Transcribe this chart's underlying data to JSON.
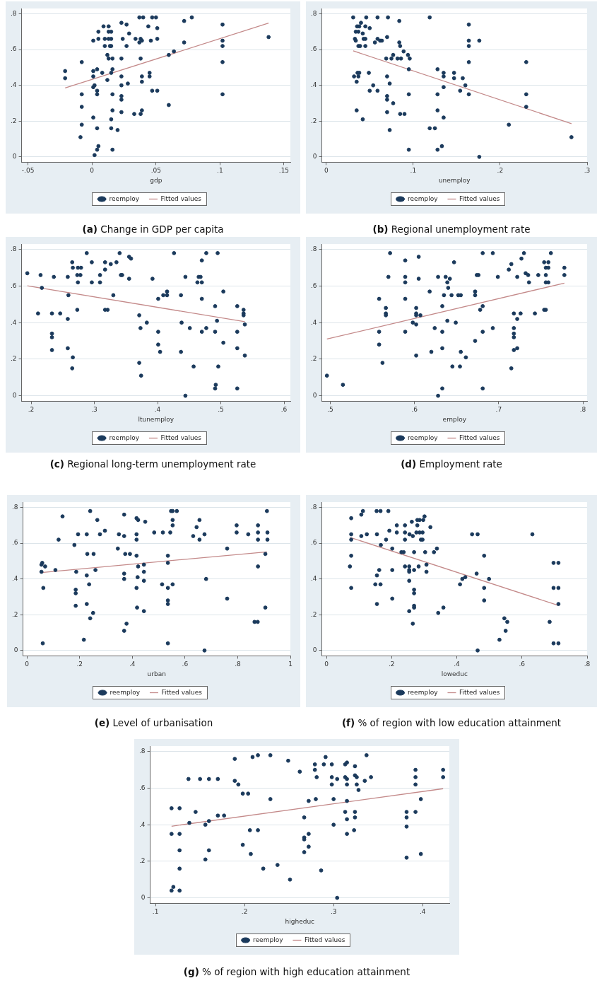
{
  "chart_data": [
    {
      "type": "scatter",
      "title": "(a) Change in GDP per capita",
      "xlabel": "gdp",
      "xlim": [
        -0.055,
        0.155
      ],
      "xticks": [
        {
          "value": -0.05,
          "label": "-.05"
        },
        {
          "value": 0,
          "label": "0"
        },
        {
          "value": 0.05,
          "label": ".05"
        },
        {
          "value": 0.1,
          "label": ".1"
        },
        {
          "value": 0.15,
          "label": ".15"
        }
      ],
      "ylim": [
        -0.03,
        0.83
      ],
      "yticks": [
        {
          "value": 0,
          "label": "0"
        },
        {
          "value": 0.2,
          "label": ".2"
        },
        {
          "value": 0.4,
          "label": ".4"
        },
        {
          "value": 0.6,
          "label": ".6"
        },
        {
          "value": 0.8,
          "label": ".8"
        }
      ],
      "grid": "y",
      "legend": "bottom",
      "marker": "circle",
      "series": [
        {
          "name": "reemploy",
          "color": "#1b3a5c",
          "x": [
            -0.021,
            -0.021,
            -0.008,
            -0.008,
            -0.008,
            -0.008,
            -0.009,
            0.001,
            0.001,
            0.001,
            0.001,
            0.002,
            0.004,
            0.004,
            0.004,
            0.001,
            0.004,
            0.005,
            0.004,
            0.002,
            0.005,
            0.005,
            0.009,
            0.008,
            0.01,
            0.01,
            0.012,
            0.012,
            0.013,
            0.013,
            0.015,
            0.013,
            0.015,
            0.014,
            0.015,
            0.013,
            0.016,
            0.016,
            0.015,
            0.016,
            0.016,
            0.015,
            0.015,
            0.016,
            0.02,
            0.023,
            0.024,
            0.023,
            0.023,
            0.023,
            0.023,
            0.023,
            0.023,
            0.027,
            0.027,
            0.028,
            0.029,
            0.033,
            0.034,
            0.037,
            0.037,
            0.038,
            0.039,
            0.04,
            0.038,
            0.039,
            0.039,
            0.039,
            0.038,
            0.044,
            0.045,
            0.045,
            0.046,
            0.047,
            0.047,
            0.05,
            0.051,
            0.051,
            0.051,
            0.06,
            0.06,
            0.064,
            0.072,
            0.072,
            0.078,
            0.102,
            0.102,
            0.102,
            0.102,
            0.102,
            0.138
          ],
          "values": [
            0.48,
            0.44,
            0.53,
            0.35,
            0.28,
            0.18,
            0.11,
            0.65,
            0.48,
            0.45,
            0.39,
            0.4,
            0.49,
            0.37,
            0.35,
            0.22,
            0.16,
            0.06,
            0.04,
            0.01,
            0.7,
            0.66,
            0.73,
            0.47,
            0.66,
            0.62,
            0.57,
            0.43,
            0.73,
            0.7,
            0.7,
            0.66,
            0.66,
            0.62,
            0.62,
            0.55,
            0.55,
            0.49,
            0.47,
            0.35,
            0.26,
            0.21,
            0.16,
            0.04,
            0.15,
            0.75,
            0.66,
            0.55,
            0.45,
            0.4,
            0.34,
            0.32,
            0.25,
            0.74,
            0.62,
            0.41,
            0.69,
            0.24,
            0.66,
            0.78,
            0.64,
            0.66,
            0.65,
            0.78,
            0.55,
            0.45,
            0.42,
            0.26,
            0.24,
            0.73,
            0.47,
            0.45,
            0.65,
            0.78,
            0.37,
            0.78,
            0.72,
            0.66,
            0.37,
            0.57,
            0.29,
            0.59,
            0.76,
            0.64,
            0.78,
            0.74,
            0.65,
            0.62,
            0.53,
            0.35,
            0.67
          ]
        },
        {
          "name": "Fitted values",
          "type": "line",
          "color": "#c48a8a",
          "marker": "none",
          "x": [
            -0.021,
            0.138
          ],
          "values": [
            0.385,
            0.748
          ]
        }
      ]
    },
    {
      "type": "scatter",
      "title": "(b) Regional unemployment rate",
      "xlabel": "unemploy",
      "xlim": [
        -0.005,
        0.3
      ],
      "xticks": [
        {
          "value": 0,
          "label": "0"
        },
        {
          "value": 0.1,
          "label": ".1"
        },
        {
          "value": 0.2,
          "label": ".2"
        },
        {
          "value": 0.3,
          "label": ".3"
        }
      ],
      "ylim": [
        -0.03,
        0.83
      ],
      "yticks": [
        {
          "value": 0,
          "label": "0"
        },
        {
          "value": 0.2,
          "label": ".2"
        },
        {
          "value": 0.4,
          "label": ".4"
        },
        {
          "value": 0.6,
          "label": ".6"
        },
        {
          "value": 0.8,
          "label": ".8"
        }
      ],
      "grid": "y",
      "legend": "bottom",
      "marker": "circle",
      "series": [
        {
          "name": "reemploy",
          "color": "#1b3a5c",
          "x": [
            0.031,
            0.032,
            0.033,
            0.034,
            0.034,
            0.0355,
            0.035,
            0.035,
            0.036,
            0.037,
            0.037,
            0.038,
            0.038,
            0.037,
            0.039,
            0.04,
            0.042,
            0.042,
            0.043,
            0.045,
            0.045,
            0.045,
            0.046,
            0.049,
            0.05,
            0.05,
            0.054,
            0.056,
            0.059,
            0.059,
            0.059,
            0.062,
            0.064,
            0.07,
            0.069,
            0.07,
            0.07,
            0.07,
            0.07,
            0.071,
            0.073,
            0.073,
            0.075,
            0.077,
            0.077,
            0.084,
            0.084,
            0.085,
            0.082,
            0.086,
            0.085,
            0.089,
            0.09,
            0.094,
            0.096,
            0.095,
            0.095,
            0.095,
            0.119,
            0.119,
            0.125,
            0.128,
            0.128,
            0.128,
            0.128,
            0.133,
            0.135,
            0.135,
            0.135,
            0.135,
            0.147,
            0.147,
            0.157,
            0.154,
            0.16,
            0.164,
            0.164,
            0.164,
            0.164,
            0.164,
            0.176,
            0.176,
            0.21,
            0.23,
            0.23,
            0.23,
            0.282
          ],
          "values": [
            0.78,
            0.45,
            0.66,
            0.7,
            0.65,
            0.73,
            0.42,
            0.26,
            0.47,
            0.62,
            0.7,
            0.73,
            0.47,
            0.45,
            0.62,
            0.75,
            0.69,
            0.21,
            0.66,
            0.66,
            0.73,
            0.62,
            0.78,
            0.47,
            0.37,
            0.72,
            0.4,
            0.64,
            0.78,
            0.66,
            0.37,
            0.65,
            0.65,
            0.67,
            0.55,
            0.45,
            0.34,
            0.32,
            0.25,
            0.78,
            0.41,
            0.15,
            0.55,
            0.57,
            0.3,
            0.76,
            0.64,
            0.62,
            0.55,
            0.55,
            0.24,
            0.59,
            0.24,
            0.57,
            0.55,
            0.49,
            0.35,
            0.04,
            0.78,
            0.16,
            0.16,
            0.49,
            0.35,
            0.26,
            0.04,
            0.06,
            0.47,
            0.45,
            0.39,
            0.22,
            0.47,
            0.44,
            0.44,
            0.37,
            0.4,
            0.74,
            0.65,
            0.62,
            0.53,
            0.35,
            0.65,
            0.0,
            0.18,
            0.53,
            0.35,
            0.28,
            0.11
          ]
        },
        {
          "name": "Fitted values",
          "type": "line",
          "color": "#c48a8a",
          "marker": "none",
          "x": [
            0.031,
            0.282
          ],
          "values": [
            0.593,
            0.186
          ]
        }
      ]
    },
    {
      "type": "scatter",
      "title": "(c) Regional long-term unemployment rate",
      "xlabel": "ltunemploy",
      "xlim": [
        0.185,
        0.61
      ],
      "xticks": [
        {
          "value": 0.2,
          "label": ".2"
        },
        {
          "value": 0.3,
          "label": ".3"
        },
        {
          "value": 0.4,
          "label": ".4"
        },
        {
          "value": 0.5,
          "label": ".5"
        },
        {
          "value": 0.6,
          "label": ".6"
        }
      ],
      "ylim": [
        -0.03,
        0.83
      ],
      "yticks": [
        {
          "value": 0,
          "label": "0"
        },
        {
          "value": 0.2,
          "label": ".2"
        },
        {
          "value": 0.4,
          "label": ".4"
        },
        {
          "value": 0.6,
          "label": ".6"
        },
        {
          "value": 0.8,
          "label": ".8"
        }
      ],
      "grid": "y",
      "legend": "bottom",
      "marker": "circle",
      "series": [
        {
          "name": "reemploy",
          "color": "#1b3a5c",
          "x": [
            0.194,
            0.211,
            0.215,
            0.217,
            0.233,
            0.233,
            0.233,
            0.233,
            0.236,
            0.246,
            0.258,
            0.259,
            0.258,
            0.258,
            0.265,
            0.266,
            0.266,
            0.265,
            0.273,
            0.274,
            0.273,
            0.274,
            0.278,
            0.279,
            0.288,
            0.296,
            0.296,
            0.309,
            0.309,
            0.317,
            0.317,
            0.317,
            0.321,
            0.326,
            0.33,
            0.335,
            0.34,
            0.342,
            0.344,
            0.355,
            0.358,
            0.355,
            0.371,
            0.373,
            0.371,
            0.374,
            0.383,
            0.392,
            0.401,
            0.401,
            0.401,
            0.404,
            0.409,
            0.415,
            0.415,
            0.426,
            0.437,
            0.437,
            0.438,
            0.444,
            0.444,
            0.451,
            0.457,
            0.463,
            0.465,
            0.468,
            0.47,
            0.47,
            0.47,
            0.47,
            0.477,
            0.477,
            0.491,
            0.491,
            0.491,
            0.492,
            0.494,
            0.495,
            0.496,
            0.504,
            0.504,
            0.526,
            0.526,
            0.526,
            0.526,
            0.536,
            0.536,
            0.536,
            0.538,
            0.538
          ],
          "values": [
            0.67,
            0.45,
            0.66,
            0.59,
            0.45,
            0.34,
            0.32,
            0.25,
            0.65,
            0.45,
            0.65,
            0.55,
            0.42,
            0.26,
            0.73,
            0.7,
            0.21,
            0.15,
            0.66,
            0.62,
            0.47,
            0.7,
            0.66,
            0.7,
            0.78,
            0.73,
            0.62,
            0.66,
            0.62,
            0.73,
            0.69,
            0.47,
            0.47,
            0.72,
            0.55,
            0.73,
            0.78,
            0.66,
            0.66,
            0.76,
            0.75,
            0.64,
            0.44,
            0.37,
            0.18,
            0.11,
            0.4,
            0.64,
            0.53,
            0.35,
            0.28,
            0.24,
            0.55,
            0.55,
            0.57,
            0.78,
            0.55,
            0.24,
            0.4,
            0.65,
            0.0,
            0.37,
            0.16,
            0.62,
            0.65,
            0.65,
            0.74,
            0.62,
            0.53,
            0.35,
            0.78,
            0.37,
            0.49,
            0.35,
            0.04,
            0.06,
            0.41,
            0.78,
            0.16,
            0.57,
            0.29,
            0.49,
            0.35,
            0.26,
            0.04,
            0.47,
            0.45,
            0.44,
            0.39,
            0.22
          ]
        },
        {
          "name": "Fitted values",
          "type": "line",
          "color": "#c48a8a",
          "marker": "none",
          "x": [
            0.194,
            0.538
          ],
          "values": [
            0.601,
            0.405
          ]
        }
      ]
    },
    {
      "type": "scatter",
      "title": "(d) Employment rate",
      "xlabel": "employ",
      "xlim": [
        0.49,
        0.805
      ],
      "xticks": [
        {
          "value": 0.5,
          "label": ".5"
        },
        {
          "value": 0.6,
          "label": ".6"
        },
        {
          "value": 0.7,
          "label": ".7"
        },
        {
          "value": 0.8,
          "label": ".8"
        }
      ],
      "ylim": [
        -0.03,
        0.83
      ],
      "yticks": [
        {
          "value": 0,
          "label": "0"
        },
        {
          "value": 0.2,
          "label": ".2"
        },
        {
          "value": 0.4,
          "label": ".4"
        },
        {
          "value": 0.6,
          "label": ".6"
        },
        {
          "value": 0.8,
          "label": ".8"
        }
      ],
      "grid": "y",
      "legend": "bottom",
      "marker": "circle",
      "series": [
        {
          "name": "reemploy",
          "color": "#1b3a5c",
          "x": [
            0.496,
            0.515,
            0.558,
            0.558,
            0.558,
            0.562,
            0.566,
            0.566,
            0.566,
            0.569,
            0.571,
            0.589,
            0.589,
            0.589,
            0.589,
            0.589,
            0.598,
            0.602,
            0.602,
            0.602,
            0.602,
            0.602,
            0.605,
            0.605,
            0.607,
            0.618,
            0.62,
            0.624,
            0.628,
            0.628,
            0.633,
            0.633,
            0.633,
            0.633,
            0.635,
            0.637,
            0.639,
            0.639,
            0.64,
            0.642,
            0.644,
            0.645,
            0.647,
            0.649,
            0.652,
            0.655,
            0.655,
            0.654,
            0.661,
            0.672,
            0.672,
            0.672,
            0.674,
            0.676,
            0.678,
            0.681,
            0.681,
            0.681,
            0.681,
            0.693,
            0.693,
            0.699,
            0.712,
            0.715,
            0.715,
            0.718,
            0.718,
            0.718,
            0.718,
            0.718,
            0.722,
            0.722,
            0.722,
            0.726,
            0.727,
            0.73,
            0.732,
            0.735,
            0.736,
            0.743,
            0.747,
            0.754,
            0.754,
            0.756,
            0.756,
            0.756,
            0.756,
            0.759,
            0.759,
            0.759,
            0.762,
            0.778,
            0.778
          ],
          "values": [
            0.11,
            0.06,
            0.53,
            0.35,
            0.28,
            0.18,
            0.48,
            0.45,
            0.44,
            0.65,
            0.78,
            0.74,
            0.65,
            0.62,
            0.53,
            0.35,
            0.4,
            0.48,
            0.45,
            0.44,
            0.39,
            0.22,
            0.76,
            0.64,
            0.44,
            0.57,
            0.24,
            0.37,
            0.65,
            0.0,
            0.49,
            0.35,
            0.26,
            0.04,
            0.55,
            0.65,
            0.62,
            0.41,
            0.59,
            0.64,
            0.55,
            0.16,
            0.73,
            0.4,
            0.55,
            0.55,
            0.24,
            0.16,
            0.21,
            0.55,
            0.57,
            0.3,
            0.66,
            0.66,
            0.47,
            0.49,
            0.35,
            0.04,
            0.78,
            0.78,
            0.37,
            0.65,
            0.69,
            0.72,
            0.15,
            0.45,
            0.37,
            0.34,
            0.32,
            0.25,
            0.65,
            0.42,
            0.26,
            0.45,
            0.75,
            0.78,
            0.67,
            0.66,
            0.62,
            0.45,
            0.66,
            0.73,
            0.47,
            0.47,
            0.7,
            0.66,
            0.62,
            0.73,
            0.7,
            0.62,
            0.78,
            0.7,
            0.66
          ]
        },
        {
          "name": "Fitted values",
          "type": "line",
          "color": "#c48a8a",
          "marker": "none",
          "x": [
            0.496,
            0.778
          ],
          "values": [
            0.31,
            0.616
          ]
        }
      ]
    },
    {
      "type": "scatter",
      "title": "(e) Level of urbanisation",
      "xlabel": "urban",
      "xlim": [
        -0.015,
        1.0
      ],
      "xticks": [
        {
          "value": 0,
          "label": "0"
        },
        {
          "value": 0.2,
          "label": ".2"
        },
        {
          "value": 0.4,
          "label": ".4"
        },
        {
          "value": 0.6,
          "label": ".6"
        },
        {
          "value": 0.8,
          "label": ".8"
        },
        1
      ],
      "ylim": [
        -0.03,
        0.83
      ],
      "yticks": [
        {
          "value": 0,
          "label": "0"
        },
        {
          "value": 0.2,
          "label": ".2"
        },
        {
          "value": 0.4,
          "label": ".4"
        },
        {
          "value": 0.6,
          "label": ".6"
        },
        {
          "value": 0.8,
          "label": ".8"
        }
      ],
      "grid": "y",
      "legend": "bottom",
      "marker": "circle",
      "series": [
        {
          "name": "reemploy",
          "color": "#1b3a5c",
          "x": [
            0.055,
            0.058,
            0.055,
            0.062,
            0.06,
            0.069,
            0.108,
            0.12,
            0.135,
            0.18,
            0.187,
            0.185,
            0.185,
            0.185,
            0.194,
            0.216,
            0.227,
            0.229,
            0.227,
            0.227,
            0.236,
            0.24,
            0.24,
            0.253,
            0.251,
            0.26,
            0.267,
            0.277,
            0.296,
            0.345,
            0.349,
            0.369,
            0.369,
            0.369,
            0.369,
            0.369,
            0.373,
            0.378,
            0.391,
            0.416,
            0.422,
            0.416,
            0.416,
            0.416,
            0.416,
            0.418,
            0.422,
            0.42,
            0.444,
            0.444,
            0.444,
            0.444,
            0.449,
            0.483,
            0.516,
            0.513,
            0.535,
            0.535,
            0.535,
            0.535,
            0.535,
            0.535,
            0.544,
            0.547,
            0.553,
            0.553,
            0.553,
            0.553,
            0.569,
            0.631,
            0.644,
            0.655,
            0.655,
            0.674,
            0.674,
            0.68,
            0.76,
            0.76,
            0.796,
            0.796,
            0.84,
            0.877,
            0.877,
            0.877,
            0.877,
            0.864,
            0.876,
            0.911,
            0.913,
            0.913,
            0.905,
            0.905
          ],
          "values": [
            0.48,
            0.49,
            0.44,
            0.35,
            0.04,
            0.47,
            0.45,
            0.62,
            0.75,
            0.59,
            0.44,
            0.34,
            0.32,
            0.25,
            0.65,
            0.06,
            0.65,
            0.54,
            0.42,
            0.26,
            0.37,
            0.18,
            0.78,
            0.54,
            0.21,
            0.45,
            0.73,
            0.65,
            0.67,
            0.57,
            0.65,
            0.76,
            0.64,
            0.43,
            0.4,
            0.11,
            0.54,
            0.15,
            0.54,
            0.74,
            0.73,
            0.65,
            0.62,
            0.53,
            0.35,
            0.24,
            0.47,
            0.41,
            0.48,
            0.44,
            0.39,
            0.22,
            0.72,
            0.66,
            0.66,
            0.37,
            0.53,
            0.49,
            0.35,
            0.28,
            0.26,
            0.04,
            0.66,
            0.78,
            0.78,
            0.73,
            0.7,
            0.37,
            0.78,
            0.64,
            0.69,
            0.73,
            0.62,
            0.65,
            0.0,
            0.4,
            0.57,
            0.29,
            0.7,
            0.66,
            0.65,
            0.7,
            0.66,
            0.62,
            0.47,
            0.16,
            0.16,
            0.78,
            0.66,
            0.62,
            0.54,
            0.24
          ]
        },
        {
          "name": "Fitted values",
          "type": "line",
          "color": "#c48a8a",
          "marker": "none",
          "x": [
            0.055,
            0.911
          ],
          "values": [
            0.436,
            0.552
          ]
        }
      ]
    },
    {
      "type": "scatter",
      "title": "(f) % of region with low education attainment",
      "xlabel": "loweduc",
      "xlim": [
        -0.014,
        0.8
      ],
      "xticks": [
        {
          "value": 0,
          "label": "0"
        },
        {
          "value": 0.2,
          "label": ".2"
        },
        {
          "value": 0.4,
          "label": ".4"
        },
        {
          "value": 0.6,
          "label": ".6"
        },
        {
          "value": 0.8,
          "label": ".8"
        }
      ],
      "ylim": [
        -0.03,
        0.83
      ],
      "yticks": [
        {
          "value": 0,
          "label": "0"
        },
        {
          "value": 0.2,
          "label": ".2"
        },
        {
          "value": 0.4,
          "label": ".4"
        },
        {
          "value": 0.6,
          "label": ".6"
        },
        {
          "value": 0.8,
          "label": ".8"
        }
      ],
      "grid": "y",
      "legend": "bottom",
      "marker": "circle",
      "series": [
        {
          "name": "reemploy",
          "color": "#1b3a5c",
          "x": [
            0.072,
            0.076,
            0.076,
            0.076,
            0.076,
            0.076,
            0.107,
            0.107,
            0.112,
            0.124,
            0.154,
            0.155,
            0.155,
            0.155,
            0.15,
            0.162,
            0.166,
            0.167,
            0.166,
            0.183,
            0.19,
            0.193,
            0.202,
            0.202,
            0.202,
            0.216,
            0.216,
            0.23,
            0.237,
            0.241,
            0.241,
            0.241,
            0.241,
            0.254,
            0.254,
            0.254,
            0.254,
            0.254,
            0.255,
            0.262,
            0.265,
            0.269,
            0.269,
            0.269,
            0.269,
            0.269,
            0.269,
            0.265,
            0.276,
            0.279,
            0.279,
            0.283,
            0.286,
            0.286,
            0.29,
            0.295,
            0.295,
            0.297,
            0.301,
            0.303,
            0.307,
            0.307,
            0.319,
            0.33,
            0.339,
            0.343,
            0.359,
            0.41,
            0.417,
            0.426,
            0.447,
            0.461,
            0.464,
            0.464,
            0.484,
            0.484,
            0.484,
            0.499,
            0.531,
            0.546,
            0.55,
            0.555,
            0.632,
            0.685,
            0.697,
            0.697,
            0.697,
            0.712,
            0.712,
            0.712,
            0.712
          ],
          "values": [
            0.47,
            0.74,
            0.65,
            0.62,
            0.53,
            0.35,
            0.64,
            0.76,
            0.78,
            0.65,
            0.78,
            0.65,
            0.42,
            0.26,
            0.37,
            0.45,
            0.78,
            0.59,
            0.37,
            0.62,
            0.78,
            0.67,
            0.57,
            0.45,
            0.29,
            0.7,
            0.66,
            0.55,
            0.55,
            0.7,
            0.66,
            0.62,
            0.47,
            0.47,
            0.45,
            0.44,
            0.39,
            0.22,
            0.65,
            0.72,
            0.64,
            0.55,
            0.45,
            0.34,
            0.32,
            0.25,
            0.24,
            0.15,
            0.66,
            0.7,
            0.73,
            0.47,
            0.73,
            0.66,
            0.62,
            0.62,
            0.66,
            0.73,
            0.75,
            0.55,
            0.48,
            0.44,
            0.69,
            0.55,
            0.57,
            0.21,
            0.24,
            0.37,
            0.4,
            0.41,
            0.65,
            0.43,
            0.65,
            0.0,
            0.53,
            0.35,
            0.28,
            0.4,
            0.06,
            0.18,
            0.11,
            0.16,
            0.65,
            0.16,
            0.49,
            0.35,
            0.04,
            0.49,
            0.35,
            0.26,
            0.04
          ]
        },
        {
          "name": "Fitted values",
          "type": "line",
          "color": "#c48a8a",
          "marker": "none",
          "x": [
            0.072,
            0.712
          ],
          "values": [
            0.633,
            0.252
          ]
        }
      ]
    },
    {
      "type": "scatter",
      "title": "(g) % of region with high education attainment",
      "xlabel": "higheduc",
      "xlim": [
        0.094,
        0.43
      ],
      "xticks": [
        {
          "value": 0.1,
          "label": ".1"
        },
        {
          "value": 0.2,
          "label": ".2"
        },
        {
          "value": 0.3,
          "label": ".3"
        },
        {
          "value": 0.4,
          "label": ".4"
        }
      ],
      "ylim": [
        -0.03,
        0.83
      ],
      "yticks": [
        {
          "value": 0,
          "label": "0"
        },
        {
          "value": 0.2,
          "label": ".2"
        },
        {
          "value": 0.4,
          "label": ".4"
        },
        {
          "value": 0.6,
          "label": ".6"
        },
        {
          "value": 0.8,
          "label": ".8"
        }
      ],
      "grid": "y",
      "legend": "bottom",
      "marker": "circle",
      "series": [
        {
          "name": "reemploy",
          "color": "#1b3a5c",
          "x": [
            0.118,
            0.127,
            0.118,
            0.127,
            0.127,
            0.127,
            0.12,
            0.118,
            0.127,
            0.137,
            0.138,
            0.145,
            0.15,
            0.156,
            0.156,
            0.16,
            0.16,
            0.16,
            0.17,
            0.17,
            0.177,
            0.189,
            0.189,
            0.193,
            0.198,
            0.198,
            0.204,
            0.206,
            0.207,
            0.209,
            0.215,
            0.215,
            0.221,
            0.229,
            0.229,
            0.237,
            0.249,
            0.251,
            0.262,
            0.267,
            0.267,
            0.267,
            0.267,
            0.272,
            0.272,
            0.272,
            0.279,
            0.279,
            0.281,
            0.28,
            0.286,
            0.289,
            0.291,
            0.298,
            0.298,
            0.298,
            0.3,
            0.3,
            0.304,
            0.304,
            0.313,
            0.315,
            0.313,
            0.313,
            0.315,
            0.315,
            0.315,
            0.315,
            0.315,
            0.324,
            0.324,
            0.326,
            0.326,
            0.328,
            0.324,
            0.324,
            0.323,
            0.335,
            0.337,
            0.342,
            0.382,
            0.382,
            0.382,
            0.382,
            0.392,
            0.392,
            0.392,
            0.392,
            0.398,
            0.398,
            0.423,
            0.423
          ],
          "values": [
            0.49,
            0.49,
            0.35,
            0.35,
            0.26,
            0.16,
            0.06,
            0.04,
            0.04,
            0.65,
            0.41,
            0.47,
            0.65,
            0.4,
            0.21,
            0.65,
            0.42,
            0.26,
            0.65,
            0.45,
            0.45,
            0.76,
            0.64,
            0.62,
            0.57,
            0.29,
            0.57,
            0.37,
            0.24,
            0.77,
            0.78,
            0.37,
            0.16,
            0.54,
            0.78,
            0.18,
            0.75,
            0.1,
            0.69,
            0.44,
            0.33,
            0.32,
            0.25,
            0.53,
            0.35,
            0.28,
            0.73,
            0.7,
            0.66,
            0.54,
            0.15,
            0.73,
            0.77,
            0.73,
            0.66,
            0.62,
            0.54,
            0.4,
            0.0,
            0.65,
            0.73,
            0.74,
            0.47,
            0.66,
            0.65,
            0.62,
            0.53,
            0.43,
            0.35,
            0.72,
            0.67,
            0.66,
            0.62,
            0.59,
            0.47,
            0.44,
            0.37,
            0.64,
            0.78,
            0.66,
            0.47,
            0.44,
            0.39,
            0.22,
            0.7,
            0.66,
            0.62,
            0.47,
            0.54,
            0.24,
            0.7,
            0.66
          ]
        },
        {
          "name": "Fitted values",
          "type": "line",
          "color": "#c48a8a",
          "marker": "none",
          "x": [
            0.118,
            0.423
          ],
          "values": [
            0.392,
            0.597
          ]
        }
      ]
    }
  ]
}
